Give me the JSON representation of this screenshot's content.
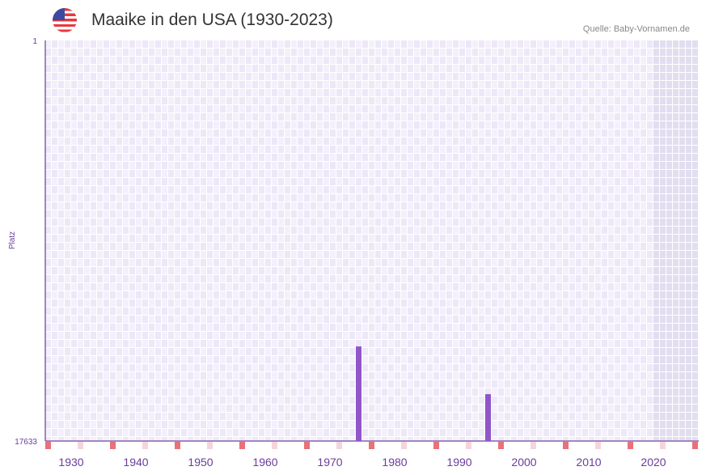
{
  "header": {
    "title": "Maaike in den USA (1930-2023)",
    "source": "Quelle: Baby-Vornamen.de",
    "flag_icon": "us-flag-icon"
  },
  "chart_data": {
    "type": "bar",
    "title": "Maaike in den USA (1930-2023)",
    "ylabel": "Platz",
    "y_axis": {
      "top_label": "1",
      "bottom_label": "17633",
      "inverted": true,
      "range": [
        1,
        17633
      ]
    },
    "x_range": [
      1928,
      2028
    ],
    "xticks": [
      "1930",
      "1940",
      "1950",
      "1960",
      "1970",
      "1980",
      "1990",
      "2000",
      "2010",
      "2020"
    ],
    "data": [
      {
        "year": 1976,
        "rank": 13470
      },
      {
        "year": 1996,
        "rank": 15570
      }
    ],
    "no_data_from": 2022,
    "colors": {
      "bar": "#9055c8",
      "marker": "#e8717a",
      "marker_light": "#f5d5dd",
      "grid_a": "#ede8f8",
      "grid_b": "#f4f0fb",
      "shade": "#e2def0"
    }
  }
}
